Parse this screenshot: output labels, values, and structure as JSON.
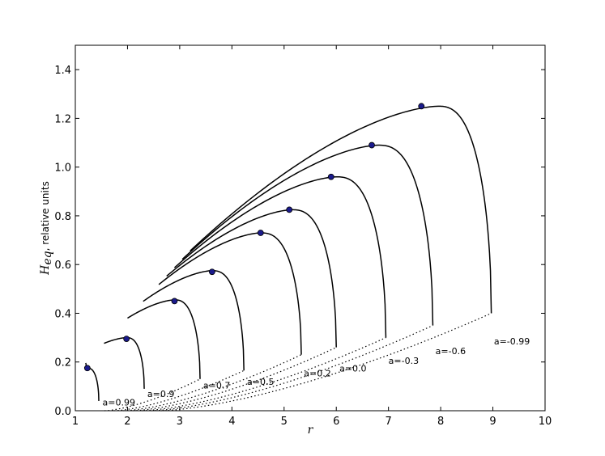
{
  "chart_data": {
    "type": "line",
    "title": "",
    "xlabel": "r",
    "ylabel_main": "H",
    "ylabel_sub": "eq",
    "ylabel_rest": ", relative units",
    "xlim": [
      1,
      10
    ],
    "ylim": [
      0,
      1.5
    ],
    "xticks": [
      1,
      2,
      3,
      4,
      5,
      6,
      7,
      8,
      9,
      10
    ],
    "yticks": [
      0.0,
      0.2,
      0.4,
      0.6,
      0.8,
      1.0,
      1.2,
      1.4
    ],
    "xtick_labels": [
      "1",
      "2",
      "3",
      "4",
      "5",
      "6",
      "7",
      "8",
      "9",
      "10"
    ],
    "ytick_labels": [
      "0.0",
      "0.2",
      "0.4",
      "0.6",
      "0.8",
      "1.0",
      "1.2",
      "1.4"
    ],
    "grid": false,
    "legend": "none",
    "series": [
      {
        "name": "a=0.99",
        "r_in": 1.2,
        "r_start": 1.45,
        "h_end": 0.04,
        "peak": [
          1.23,
          0.175
        ],
        "dot": [
          1.23,
          0.175
        ]
      },
      {
        "name": "a=0.9",
        "r_in": 1.55,
        "r_start": 2.32,
        "h_end": 0.09,
        "peak": [
          1.98,
          0.3
        ],
        "dot": [
          1.98,
          0.295
        ]
      },
      {
        "name": "a=0.7",
        "r_in": 2.0,
        "r_start": 3.39,
        "h_end": 0.13,
        "peak": [
          2.9,
          0.455
        ],
        "dot": [
          2.9,
          0.45
        ]
      },
      {
        "name": "a=0.5",
        "r_in": 2.3,
        "r_start": 4.23,
        "h_end": 0.165,
        "peak": [
          3.62,
          0.575
        ],
        "dot": [
          3.62,
          0.57
        ]
      },
      {
        "name": "a=0.2",
        "r_in": 2.6,
        "r_start": 5.33,
        "h_end": 0.23,
        "peak": [
          4.55,
          0.73
        ],
        "dot": [
          4.55,
          0.73
        ]
      },
      {
        "name": "a=0.0",
        "r_in": 2.75,
        "r_start": 6.0,
        "h_end": 0.26,
        "peak": [
          5.15,
          0.825
        ],
        "dot": [
          5.1,
          0.825
        ]
      },
      {
        "name": "a=-0.3",
        "r_in": 2.9,
        "r_start": 6.95,
        "h_end": 0.3,
        "peak": [
          6.0,
          0.96
        ],
        "dot": [
          5.9,
          0.96
        ]
      },
      {
        "name": "a=-0.6",
        "r_in": 3.05,
        "r_start": 7.85,
        "h_end": 0.35,
        "peak": [
          6.8,
          1.09
        ],
        "dot": [
          6.68,
          1.09
        ]
      },
      {
        "name": "a=-0.99",
        "r_in": 3.2,
        "r_start": 8.97,
        "h_end": 0.4,
        "peak": [
          7.95,
          1.25
        ],
        "dot": [
          7.63,
          1.25
        ]
      }
    ],
    "label_positions": [
      {
        "text": "a=0.99",
        "r": 1.52,
        "h": 0.035
      },
      {
        "text": "a=0.9",
        "r": 2.38,
        "h": 0.07
      },
      {
        "text": "a=0.7",
        "r": 3.45,
        "h": 0.105
      },
      {
        "text": "a=0.5",
        "r": 4.29,
        "h": 0.12
      },
      {
        "text": "a=0.2",
        "r": 5.38,
        "h": 0.155
      },
      {
        "text": "a=0.0",
        "r": 6.06,
        "h": 0.175
      },
      {
        "text": "a=-0.3",
        "r": 7.0,
        "h": 0.205
      },
      {
        "text": "a=-0.6",
        "r": 7.9,
        "h": 0.245
      },
      {
        "text": "a=-0.99",
        "r": 9.02,
        "h": 0.285
      }
    ],
    "colors": {
      "curve": "#000000",
      "dot": "#1a1a8c",
      "dot_edge": "#000000"
    }
  }
}
